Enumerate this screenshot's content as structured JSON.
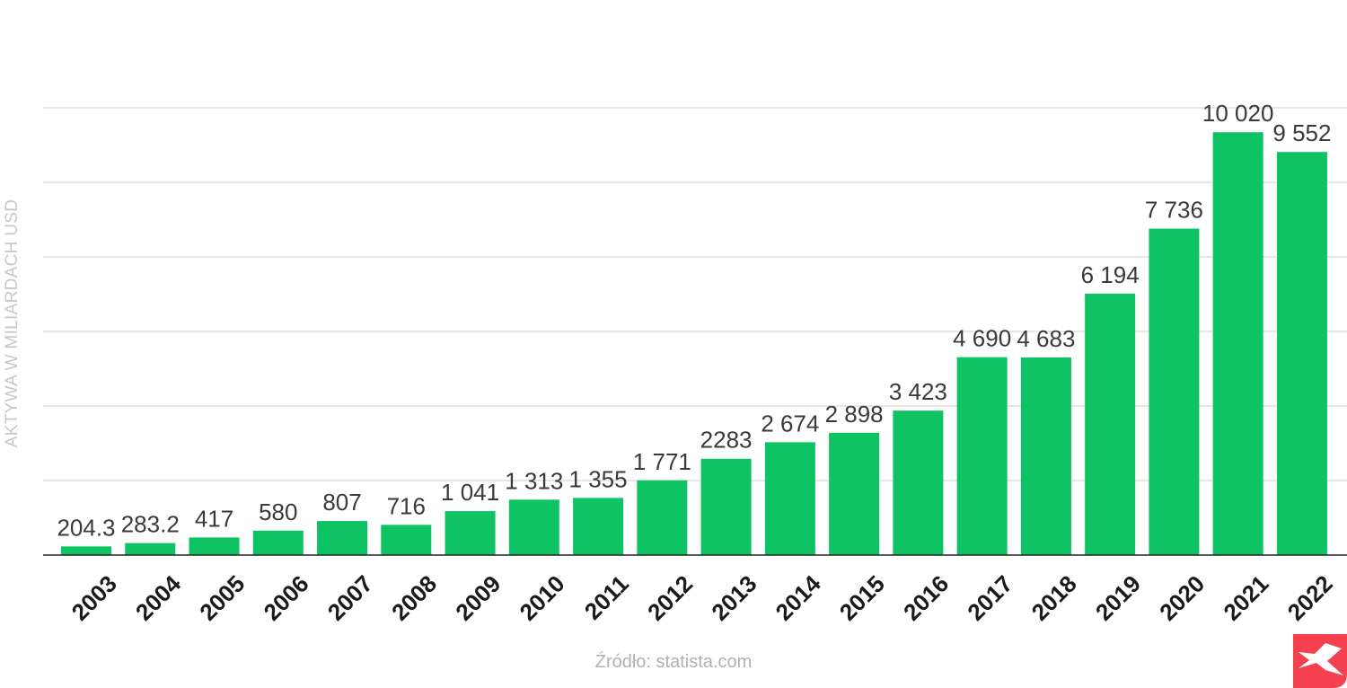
{
  "chart_data": {
    "type": "bar",
    "title": "",
    "xlabel": "",
    "ylabel": "AKTYWA W MILIARDACH USD",
    "categories": [
      "2003",
      "2004",
      "2005",
      "2006",
      "2007",
      "2008",
      "2009",
      "2010",
      "2011",
      "2012",
      "2013",
      "2014",
      "2015",
      "2016",
      "2017",
      "2018",
      "2019",
      "2020",
      "2021",
      "2022"
    ],
    "values": [
      204.3,
      283.2,
      417,
      580,
      807,
      716,
      1041,
      1313,
      1355,
      1771,
      2283,
      2674,
      2898,
      3423,
      4690,
      4683,
      6194,
      7736,
      10020,
      9552
    ],
    "data_labels": [
      "204.3",
      "283.2",
      "417",
      "580",
      "807",
      "716",
      "1 041",
      "1 313",
      "1 355",
      "1 771",
      "2283",
      "2 674",
      "2 898",
      "3 423",
      "4 690",
      "4 683",
      "6 194",
      "7 736",
      "10 020",
      "9 552"
    ],
    "ylim": [
      0,
      10600
    ],
    "grid": true,
    "y_tick_labels_shown": false,
    "bar_color": "#0dc363",
    "legend": "none"
  },
  "source": "Źródło: statista.com",
  "logo": {
    "name": "xtb-logo",
    "color": "#f5414f"
  }
}
